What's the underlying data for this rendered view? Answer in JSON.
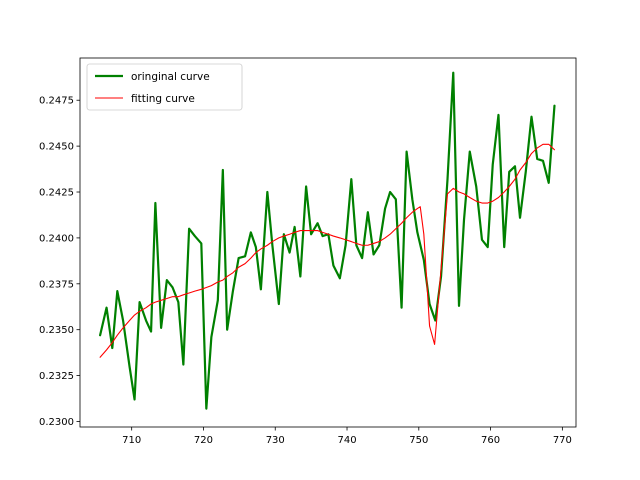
{
  "chart_data": {
    "type": "line",
    "title": "",
    "xlabel": "",
    "ylabel": "",
    "xlim": [
      702.8,
      771.9
    ],
    "ylim": [
      0.2297,
      0.2498
    ],
    "xticks": [
      710,
      720,
      730,
      740,
      750,
      760,
      770
    ],
    "yticks": [
      0.23,
      0.2325,
      0.235,
      0.2375,
      0.24,
      0.2425,
      0.245,
      0.2475
    ],
    "ytick_labels": [
      "0.2300",
      "0.2325",
      "0.2350",
      "0.2375",
      "0.2400",
      "0.2425",
      "0.2450",
      "0.2475"
    ],
    "legend": {
      "placement": "top-left"
    },
    "grid": false,
    "series": [
      {
        "name": "oringinal curve",
        "color": "#008000",
        "points": [
          [
            705.6,
            0.2347
          ],
          [
            706.5,
            0.2362
          ],
          [
            707.3,
            0.234
          ],
          [
            708.0,
            0.2371
          ],
          [
            708.8,
            0.2355
          ],
          [
            709.7,
            0.233
          ],
          [
            710.4,
            0.2312
          ],
          [
            711.1,
            0.2365
          ],
          [
            712.0,
            0.2355
          ],
          [
            712.7,
            0.2349
          ],
          [
            713.3,
            0.2419
          ],
          [
            714.1,
            0.2351
          ],
          [
            714.9,
            0.2377
          ],
          [
            715.7,
            0.2373
          ],
          [
            716.5,
            0.2365
          ],
          [
            717.2,
            0.2331
          ],
          [
            718.0,
            0.2405
          ],
          [
            718.8,
            0.2401
          ],
          [
            719.7,
            0.2397
          ],
          [
            720.4,
            0.2307
          ],
          [
            721.1,
            0.2346
          ],
          [
            722.0,
            0.2366
          ],
          [
            722.7,
            0.2437
          ],
          [
            723.3,
            0.235
          ],
          [
            724.1,
            0.2371
          ],
          [
            724.9,
            0.2389
          ],
          [
            725.8,
            0.239
          ],
          [
            726.6,
            0.2403
          ],
          [
            727.3,
            0.2395
          ],
          [
            728.0,
            0.2372
          ],
          [
            728.9,
            0.2425
          ],
          [
            729.6,
            0.2396
          ],
          [
            730.5,
            0.2364
          ],
          [
            731.2,
            0.2402
          ],
          [
            732.0,
            0.2392
          ],
          [
            732.7,
            0.2406
          ],
          [
            733.5,
            0.2379
          ],
          [
            734.3,
            0.2428
          ],
          [
            735.0,
            0.2402
          ],
          [
            735.9,
            0.2408
          ],
          [
            736.6,
            0.2401
          ],
          [
            737.4,
            0.2402
          ],
          [
            738.1,
            0.2385
          ],
          [
            739.0,
            0.2378
          ],
          [
            739.8,
            0.2396
          ],
          [
            740.6,
            0.2432
          ],
          [
            741.3,
            0.2396
          ],
          [
            742.1,
            0.2389
          ],
          [
            742.9,
            0.2414
          ],
          [
            743.7,
            0.2391
          ],
          [
            744.5,
            0.2396
          ],
          [
            745.3,
            0.2416
          ],
          [
            746.0,
            0.2425
          ],
          [
            746.8,
            0.2421
          ],
          [
            747.6,
            0.2362
          ],
          [
            748.3,
            0.2447
          ],
          [
            749.1,
            0.2421
          ],
          [
            749.8,
            0.2403
          ],
          [
            750.7,
            0.2388
          ],
          [
            751.5,
            0.2364
          ],
          [
            752.3,
            0.2355
          ],
          [
            753.1,
            0.2379
          ],
          [
            754.0,
            0.2432
          ],
          [
            754.8,
            0.249
          ],
          [
            755.6,
            0.2363
          ],
          [
            756.3,
            0.241
          ],
          [
            757.1,
            0.2447
          ],
          [
            758.0,
            0.2428
          ],
          [
            758.8,
            0.2399
          ],
          [
            759.6,
            0.2395
          ],
          [
            760.3,
            0.244
          ],
          [
            761.1,
            0.2467
          ],
          [
            761.9,
            0.2395
          ],
          [
            762.6,
            0.2436
          ],
          [
            763.4,
            0.2439
          ],
          [
            764.1,
            0.2411
          ],
          [
            764.9,
            0.2436
          ],
          [
            765.7,
            0.2466
          ],
          [
            766.5,
            0.2443
          ],
          [
            767.3,
            0.2442
          ],
          [
            768.1,
            0.243
          ],
          [
            768.9,
            0.2472
          ]
        ]
      },
      {
        "name": "fitting curve",
        "color": "#ff0000",
        "points": [
          [
            705.6,
            0.2335
          ],
          [
            706.5,
            0.2339
          ],
          [
            707.3,
            0.2343
          ],
          [
            708.0,
            0.2347
          ],
          [
            708.8,
            0.2351
          ],
          [
            709.7,
            0.2355
          ],
          [
            710.4,
            0.2358
          ],
          [
            711.1,
            0.236
          ],
          [
            712.0,
            0.2362
          ],
          [
            712.7,
            0.2364
          ],
          [
            713.3,
            0.2365
          ],
          [
            714.1,
            0.2366
          ],
          [
            714.9,
            0.2367
          ],
          [
            715.7,
            0.2368
          ],
          [
            716.5,
            0.2368
          ],
          [
            717.2,
            0.2369
          ],
          [
            718.0,
            0.237
          ],
          [
            718.8,
            0.2371
          ],
          [
            719.7,
            0.2372
          ],
          [
            720.4,
            0.2373
          ],
          [
            721.1,
            0.2374
          ],
          [
            722.0,
            0.2376
          ],
          [
            722.7,
            0.2377
          ],
          [
            723.3,
            0.2379
          ],
          [
            724.1,
            0.2381
          ],
          [
            724.9,
            0.2384
          ],
          [
            725.8,
            0.2386
          ],
          [
            726.6,
            0.2389
          ],
          [
            727.3,
            0.2392
          ],
          [
            728.0,
            0.2394
          ],
          [
            728.9,
            0.2396
          ],
          [
            729.6,
            0.2398
          ],
          [
            730.5,
            0.24
          ],
          [
            731.2,
            0.2401
          ],
          [
            732.0,
            0.2402
          ],
          [
            732.7,
            0.2403
          ],
          [
            733.5,
            0.2404
          ],
          [
            734.3,
            0.2404
          ],
          [
            735.0,
            0.2404
          ],
          [
            735.9,
            0.2404
          ],
          [
            736.6,
            0.2403
          ],
          [
            737.4,
            0.2402
          ],
          [
            738.1,
            0.2401
          ],
          [
            739.0,
            0.24
          ],
          [
            739.8,
            0.2399
          ],
          [
            740.6,
            0.2398
          ],
          [
            741.3,
            0.2397
          ],
          [
            742.1,
            0.2396
          ],
          [
            742.9,
            0.2396
          ],
          [
            743.7,
            0.2397
          ],
          [
            744.5,
            0.2398
          ],
          [
            745.3,
            0.24
          ],
          [
            746.0,
            0.2402
          ],
          [
            746.8,
            0.2405
          ],
          [
            747.6,
            0.2408
          ],
          [
            748.3,
            0.2411
          ],
          [
            749.1,
            0.2414
          ],
          [
            749.8,
            0.2416
          ],
          [
            750.2,
            0.2417
          ],
          [
            750.7,
            0.2402
          ],
          [
            751.5,
            0.2352
          ],
          [
            752.2,
            0.2342
          ],
          [
            753.1,
            0.2383
          ],
          [
            754.0,
            0.2424
          ],
          [
            754.8,
            0.2427
          ],
          [
            755.6,
            0.2425
          ],
          [
            756.3,
            0.2424
          ],
          [
            757.1,
            0.2422
          ],
          [
            758.0,
            0.242
          ],
          [
            758.8,
            0.2419
          ],
          [
            759.6,
            0.2419
          ],
          [
            760.3,
            0.242
          ],
          [
            761.1,
            0.2422
          ],
          [
            761.9,
            0.2425
          ],
          [
            762.6,
            0.2428
          ],
          [
            763.4,
            0.2432
          ],
          [
            764.1,
            0.2437
          ],
          [
            764.9,
            0.2441
          ],
          [
            765.7,
            0.2446
          ],
          [
            766.5,
            0.2449
          ],
          [
            767.3,
            0.2451
          ],
          [
            768.1,
            0.2451
          ],
          [
            768.9,
            0.2448
          ]
        ]
      }
    ]
  }
}
